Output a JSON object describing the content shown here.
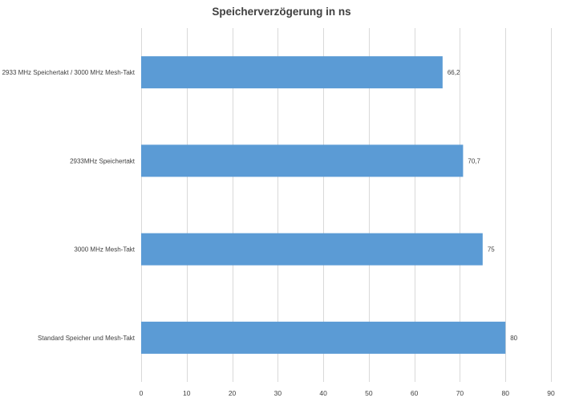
{
  "chart_data": {
    "type": "bar",
    "orientation": "horizontal",
    "title": "Speicherverzögerung in ns",
    "categories": [
      "2933 MHz Speichertakt / 3000 MHz Mesh-Takt",
      "2933MHz Speichertakt",
      "3000 MHz Mesh-Takt",
      "Standard Speicher und Mesh-Takt"
    ],
    "values": [
      66.2,
      70.7,
      75,
      80
    ],
    "data_labels": [
      "66,2",
      "70,7",
      "75",
      "80"
    ],
    "xlim": [
      0,
      90
    ],
    "xticks": [
      0,
      10,
      20,
      30,
      40,
      50,
      60,
      70,
      80,
      90
    ],
    "grid": true,
    "bar_color": "#5b9bd5"
  }
}
